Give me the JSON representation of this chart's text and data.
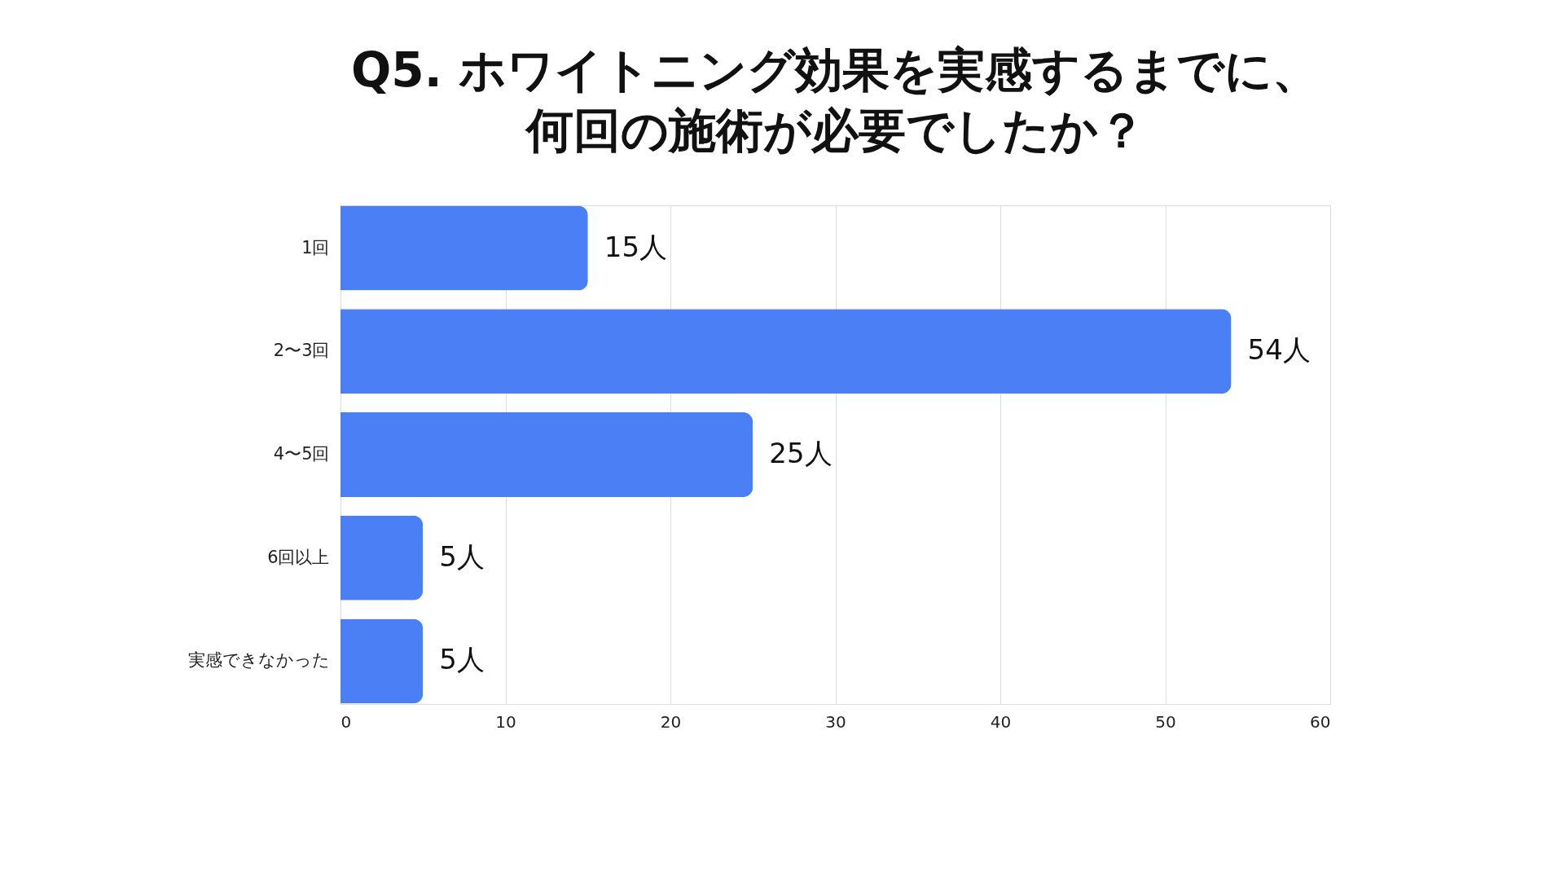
{
  "chart_data": {
    "type": "bar",
    "orientation": "horizontal",
    "title": "Q5. ホワイトニング効果を実感するまでに、何回の施術が必要でしたか？",
    "categories": [
      "1回",
      "2〜3回",
      "4〜5回",
      "6回以上",
      "実感できなかった"
    ],
    "values": [
      15,
      54,
      25,
      5,
      5
    ],
    "value_labels": [
      "15人",
      "54人",
      "25人",
      "5人",
      "5人"
    ],
    "color": "#4a7ff5",
    "xlim": [
      0,
      60
    ],
    "xticks": [
      0,
      10,
      20,
      30,
      40,
      50,
      60
    ],
    "grid": "x"
  }
}
